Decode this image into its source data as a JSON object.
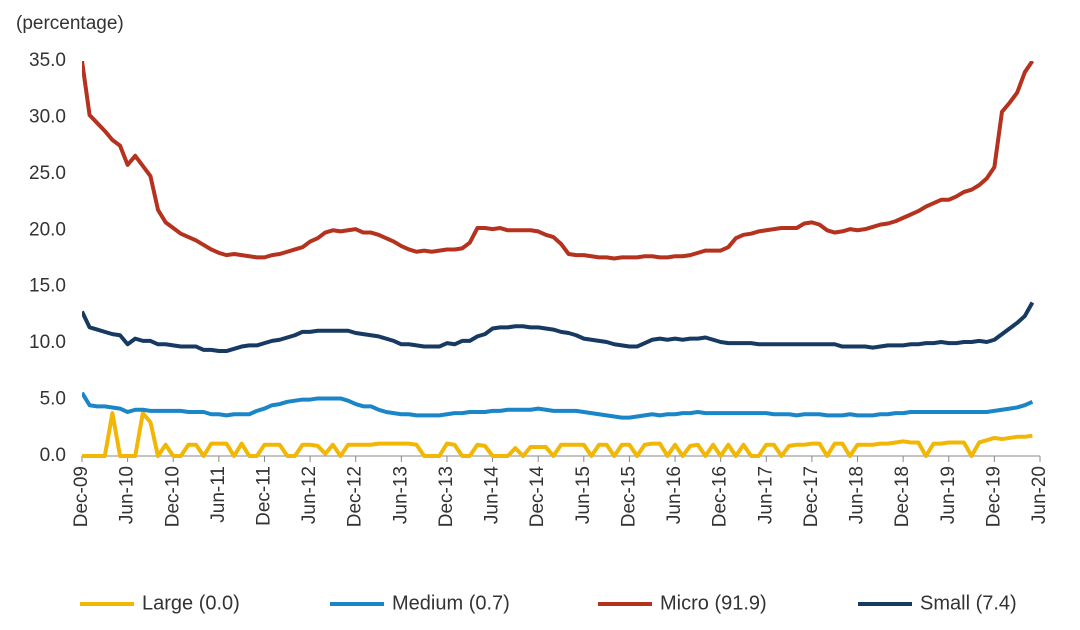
{
  "chart_data": {
    "type": "line",
    "y_label": "(percentage)",
    "categories": [
      "Dec-09",
      null,
      null,
      null,
      null,
      null,
      "Jun-10",
      null,
      null,
      null,
      null,
      null,
      "Dec-10",
      null,
      null,
      null,
      null,
      null,
      "Jun-11",
      null,
      null,
      null,
      null,
      null,
      "Dec-11",
      null,
      null,
      null,
      null,
      null,
      "Jun-12",
      null,
      null,
      null,
      null,
      null,
      "Dec-12",
      null,
      null,
      null,
      null,
      null,
      "Jun-13",
      null,
      null,
      null,
      null,
      null,
      "Dec-13",
      null,
      null,
      null,
      null,
      null,
      "Jun-14",
      null,
      null,
      null,
      null,
      null,
      "Dec-14",
      null,
      null,
      null,
      null,
      null,
      "Jun-15",
      null,
      null,
      null,
      null,
      null,
      "Dec-15",
      null,
      null,
      null,
      null,
      null,
      "Jun-16",
      null,
      null,
      null,
      null,
      null,
      "Dec-16",
      null,
      null,
      null,
      null,
      null,
      "Jun-17",
      null,
      null,
      null,
      null,
      null,
      "Dec-17",
      null,
      null,
      null,
      null,
      null,
      "Jun-18",
      null,
      null,
      null,
      null,
      null,
      "Dec-18",
      null,
      null,
      null,
      null,
      null,
      "Jun-19",
      null,
      null,
      null,
      null,
      null,
      "Dec-19",
      null,
      null,
      null,
      null,
      null,
      "Jun-20"
    ],
    "series": [
      {
        "name": "Large (0.0)",
        "color": "#f2b705",
        "values": [
          0,
          0,
          0,
          0,
          3.8,
          0,
          0,
          0,
          3.8,
          3.0,
          0,
          1.0,
          0,
          0,
          1.0,
          1.0,
          0,
          1.1,
          1.1,
          1.1,
          0,
          1.1,
          0,
          0,
          1.0,
          1.0,
          1.0,
          0,
          0,
          1.0,
          1.0,
          0.9,
          0.2,
          1.0,
          0,
          1.0,
          1.0,
          1.0,
          1.0,
          1.1,
          1.1,
          1.1,
          1.1,
          1.1,
          1.0,
          0,
          0,
          0,
          1.1,
          1.0,
          0,
          0,
          1.0,
          0.9,
          0,
          0,
          0,
          0.7,
          0,
          0.8,
          0.8,
          0.8,
          0,
          1.0,
          1.0,
          1.0,
          1.0,
          0,
          1.0,
          1.0,
          0,
          1.0,
          1.0,
          0,
          1.0,
          1.1,
          1.1,
          0,
          1.0,
          0,
          0.9,
          1.0,
          0,
          1.0,
          0,
          1.0,
          0,
          1.0,
          0,
          0,
          1.0,
          1.0,
          0,
          0.9,
          1.0,
          1.0,
          1.1,
          1.1,
          0,
          1.1,
          1.1,
          0,
          1.0,
          1.0,
          1.0,
          1.1,
          1.1,
          1.2,
          1.3,
          1.2,
          1.2,
          0,
          1.1,
          1.1,
          1.2,
          1.2,
          1.2,
          0,
          1.2,
          1.4,
          1.6,
          1.5,
          1.6,
          1.7,
          1.7,
          1.8,
          null
        ]
      },
      {
        "name": "Medium (0.7)",
        "color": "#1a86c8",
        "values": [
          5.6,
          4.5,
          4.4,
          4.4,
          4.3,
          4.2,
          3.9,
          4.1,
          4.1,
          4.0,
          4.0,
          4.0,
          4.0,
          4.0,
          3.9,
          3.9,
          3.9,
          3.7,
          3.7,
          3.6,
          3.7,
          3.7,
          3.7,
          4.0,
          4.2,
          4.5,
          4.6,
          4.8,
          4.9,
          5.0,
          5.0,
          5.1,
          5.1,
          5.1,
          5.1,
          4.9,
          4.6,
          4.4,
          4.4,
          4.1,
          3.9,
          3.8,
          3.7,
          3.7,
          3.6,
          3.6,
          3.6,
          3.6,
          3.7,
          3.8,
          3.8,
          3.9,
          3.9,
          3.9,
          4.0,
          4.0,
          4.1,
          4.1,
          4.1,
          4.1,
          4.2,
          4.1,
          4.0,
          4.0,
          4.0,
          4.0,
          3.9,
          3.8,
          3.7,
          3.6,
          3.5,
          3.4,
          3.4,
          3.5,
          3.6,
          3.7,
          3.6,
          3.7,
          3.7,
          3.8,
          3.8,
          3.9,
          3.8,
          3.8,
          3.8,
          3.8,
          3.8,
          3.8,
          3.8,
          3.8,
          3.8,
          3.7,
          3.7,
          3.7,
          3.6,
          3.7,
          3.7,
          3.7,
          3.6,
          3.6,
          3.6,
          3.7,
          3.6,
          3.6,
          3.6,
          3.7,
          3.7,
          3.8,
          3.8,
          3.9,
          3.9,
          3.9,
          3.9,
          3.9,
          3.9,
          3.9,
          3.9,
          3.9,
          3.9,
          3.9,
          4.0,
          4.1,
          4.2,
          4.3,
          4.5,
          4.8,
          null
        ]
      },
      {
        "name": "Micro (91.9)",
        "color": "#b5321e",
        "values": [
          35,
          30.2,
          29.5,
          28.8,
          28.0,
          27.5,
          25.8,
          26.6,
          25.7,
          24.8,
          21.8,
          20.7,
          20.2,
          19.7,
          19.4,
          19.1,
          18.7,
          18.3,
          18.0,
          17.8,
          17.9,
          17.8,
          17.7,
          17.6,
          17.6,
          17.8,
          17.9,
          18.1,
          18.3,
          18.5,
          19.0,
          19.3,
          19.8,
          20.0,
          19.9,
          20.0,
          20.1,
          19.8,
          19.8,
          19.6,
          19.3,
          19.0,
          18.6,
          18.3,
          18.1,
          18.2,
          18.1,
          18.2,
          18.3,
          18.3,
          18.4,
          18.9,
          20.2,
          20.2,
          20.1,
          20.2,
          20.0,
          20.0,
          20.0,
          20.0,
          19.9,
          19.6,
          19.4,
          18.8,
          17.9,
          17.8,
          17.8,
          17.7,
          17.6,
          17.6,
          17.5,
          17.6,
          17.6,
          17.6,
          17.7,
          17.7,
          17.6,
          17.6,
          17.7,
          17.7,
          17.8,
          18.0,
          18.2,
          18.2,
          18.2,
          18.5,
          19.3,
          19.6,
          19.7,
          19.9,
          20.0,
          20.1,
          20.2,
          20.2,
          20.2,
          20.6,
          20.7,
          20.5,
          20.0,
          19.8,
          19.9,
          20.1,
          20.0,
          20.1,
          20.3,
          20.5,
          20.6,
          20.8,
          21.1,
          21.4,
          21.7,
          22.1,
          22.4,
          22.7,
          22.7,
          23.0,
          23.4,
          23.6,
          24.0,
          24.6,
          25.6,
          30.5,
          31.3,
          32.2,
          34.0,
          35.0,
          null
        ]
      },
      {
        "name": "Small (7.4)",
        "color": "#173a63",
        "values": [
          12.8,
          11.4,
          11.2,
          11.0,
          10.8,
          10.7,
          9.9,
          10.4,
          10.2,
          10.2,
          9.9,
          9.9,
          9.8,
          9.7,
          9.7,
          9.7,
          9.4,
          9.4,
          9.3,
          9.3,
          9.5,
          9.7,
          9.8,
          9.8,
          10.0,
          10.2,
          10.3,
          10.5,
          10.7,
          11.0,
          11.0,
          11.1,
          11.1,
          11.1,
          11.1,
          11.1,
          10.9,
          10.8,
          10.7,
          10.6,
          10.4,
          10.2,
          9.9,
          9.9,
          9.8,
          9.7,
          9.7,
          9.7,
          10.0,
          9.9,
          10.2,
          10.2,
          10.6,
          10.8,
          11.3,
          11.4,
          11.4,
          11.5,
          11.5,
          11.4,
          11.4,
          11.3,
          11.2,
          11.0,
          10.9,
          10.7,
          10.4,
          10.3,
          10.2,
          10.1,
          9.9,
          9.8,
          9.7,
          9.7,
          10.0,
          10.3,
          10.4,
          10.3,
          10.4,
          10.3,
          10.4,
          10.4,
          10.5,
          10.3,
          10.1,
          10.0,
          10.0,
          10.0,
          10.0,
          9.9,
          9.9,
          9.9,
          9.9,
          9.9,
          9.9,
          9.9,
          9.9,
          9.9,
          9.9,
          9.9,
          9.7,
          9.7,
          9.7,
          9.7,
          9.6,
          9.7,
          9.8,
          9.8,
          9.8,
          9.9,
          9.9,
          10.0,
          10.0,
          10.1,
          10.0,
          10.0,
          10.1,
          10.1,
          10.2,
          10.1,
          10.3,
          10.8,
          11.3,
          11.8,
          12.4,
          13.6,
          null
        ]
      }
    ],
    "ylim": [
      0,
      35
    ],
    "yticks": [
      {
        "value": 0,
        "label": "0.0"
      },
      {
        "value": 5,
        "label": "5.0"
      },
      {
        "value": 10,
        "label": "10.0"
      },
      {
        "value": 15,
        "label": "15.0"
      },
      {
        "value": 20,
        "label": "20.0"
      },
      {
        "value": 25,
        "label": "25.0"
      },
      {
        "value": 30,
        "label": "30.0"
      },
      {
        "value": 35,
        "label": "35.0"
      }
    ],
    "legend": "bottom",
    "grid": false
  }
}
